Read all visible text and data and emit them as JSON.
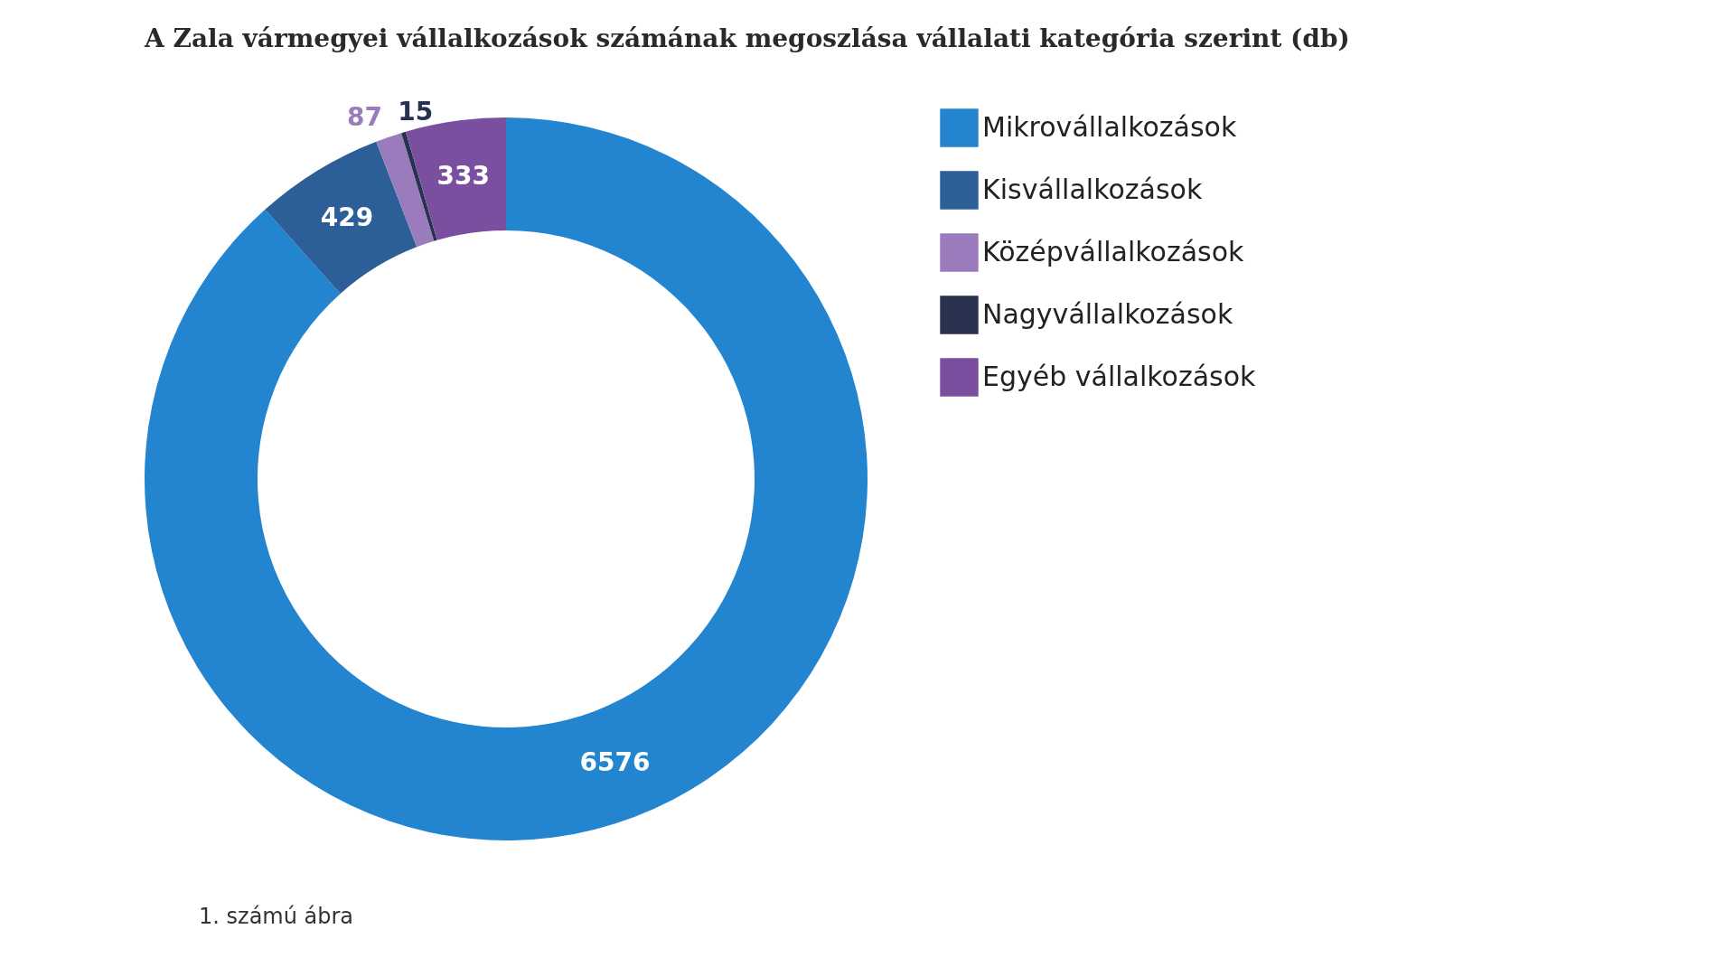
{
  "chart_data": {
    "type": "donut",
    "title": "A Zala vármegyei vállalkozások számának megoszlása vállalati kategória szerint (db)",
    "categories": [
      "Mikrovállalkozások",
      "Kisvállalkozások",
      "Középvállalkozások",
      "Nagyvállalkozások",
      "Egyéb vállalkozások"
    ],
    "values": [
      6576,
      429,
      87,
      15,
      333
    ],
    "colors": [
      "#2384cf",
      "#2c5e98",
      "#9a7cbc",
      "#28324e",
      "#7b4fa0"
    ],
    "data_labels": true,
    "legend": "right",
    "annotations": [
      "1. számú ábra"
    ]
  }
}
